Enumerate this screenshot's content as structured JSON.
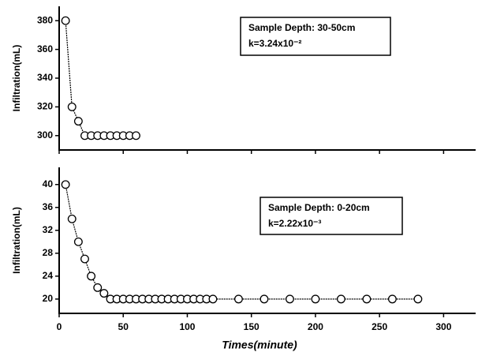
{
  "chart_data": [
    {
      "type": "scatter",
      "y_label": "Infiltration(mL)",
      "x": [
        5,
        10,
        15,
        20,
        25,
        30,
        35,
        40,
        45,
        50,
        55,
        60
      ],
      "series": [
        {
          "color": "#000000",
          "values": [
            380,
            320,
            310,
            300,
            300,
            300,
            300,
            300,
            300,
            300,
            300,
            300
          ]
        }
      ],
      "xlim": [
        0,
        325
      ],
      "ylim": [
        290,
        390
      ],
      "xticks": [
        0,
        50,
        100,
        150,
        200,
        250,
        300
      ],
      "yticks": [
        300,
        320,
        340,
        360,
        380
      ],
      "annotation": [
        "Sample Depth: 30-50cm",
        "k=3.24x10⁻²"
      ]
    },
    {
      "type": "scatter",
      "y_label": "Infiltration(mL)",
      "x_label": "Times(minute)",
      "x": [
        5,
        10,
        15,
        20,
        25,
        30,
        35,
        40,
        45,
        50,
        55,
        60,
        65,
        70,
        75,
        80,
        85,
        90,
        95,
        100,
        105,
        110,
        115,
        120,
        140,
        160,
        180,
        200,
        220,
        240,
        260,
        280
      ],
      "series": [
        {
          "color": "#000000",
          "values": [
            40,
            34,
            30,
            27,
            24,
            22,
            21,
            20,
            20,
            20,
            20,
            20,
            20,
            20,
            20,
            20,
            20,
            20,
            20,
            20,
            20,
            20,
            20,
            20,
            20,
            20,
            20,
            20,
            20,
            20,
            20,
            20
          ]
        }
      ],
      "xlim": [
        0,
        325
      ],
      "ylim": [
        17.5,
        43
      ],
      "xticks": [
        0,
        50,
        100,
        150,
        200,
        250,
        300
      ],
      "yticks": [
        20,
        24,
        28,
        32,
        36,
        40
      ],
      "annotation": [
        "Sample Depth: 0-20cm",
        "k=2.22x10⁻³"
      ]
    }
  ]
}
